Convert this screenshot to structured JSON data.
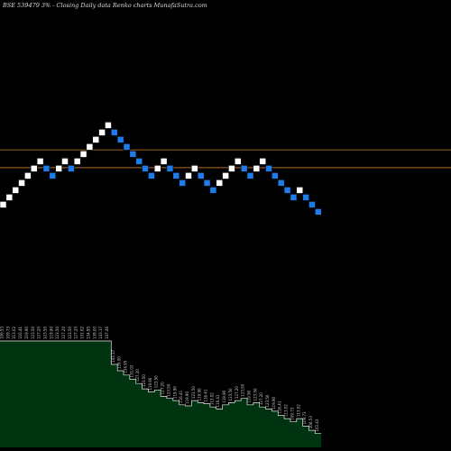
{
  "chart_data": {
    "type": "renko",
    "title": "BSE 539479 3% -  Closing Daily data  Renko  charts MunafaSutra.com",
    "bricks": [
      {
        "high": 106.53,
        "dir": "up"
      },
      {
        "high": 109.73,
        "dir": "up"
      },
      {
        "high": 113.02,
        "dir": "up"
      },
      {
        "high": 116.41,
        "dir": "up"
      },
      {
        "high": 119.9,
        "dir": "up"
      },
      {
        "high": 123.5,
        "dir": "up"
      },
      {
        "high": 127.2,
        "dir": "up"
      },
      {
        "high": 123.5,
        "dir": "down"
      },
      {
        "high": 119.9,
        "dir": "down"
      },
      {
        "high": 123.5,
        "dir": "up"
      },
      {
        "high": 127.2,
        "dir": "up"
      },
      {
        "high": 123.5,
        "dir": "down"
      },
      {
        "high": 127.2,
        "dir": "up"
      },
      {
        "high": 131.02,
        "dir": "up"
      },
      {
        "high": 134.95,
        "dir": "up"
      },
      {
        "high": 139.0,
        "dir": "up"
      },
      {
        "high": 143.17,
        "dir": "up"
      },
      {
        "high": 147.46,
        "dir": "up"
      },
      {
        "high": 143.17,
        "dir": "down"
      },
      {
        "high": 139.0,
        "dir": "down"
      },
      {
        "high": 134.95,
        "dir": "down"
      },
      {
        "high": 131.02,
        "dir": "down"
      },
      {
        "high": 127.2,
        "dir": "down"
      },
      {
        "high": 123.5,
        "dir": "down"
      },
      {
        "high": 119.9,
        "dir": "down"
      },
      {
        "high": 123.5,
        "dir": "up"
      },
      {
        "high": 127.2,
        "dir": "up"
      },
      {
        "high": 123.5,
        "dir": "down"
      },
      {
        "high": 119.9,
        "dir": "down"
      },
      {
        "high": 116.41,
        "dir": "down"
      },
      {
        "high": 119.9,
        "dir": "up"
      },
      {
        "high": 123.5,
        "dir": "up"
      },
      {
        "high": 119.9,
        "dir": "down"
      },
      {
        "high": 116.41,
        "dir": "down"
      },
      {
        "high": 113.02,
        "dir": "down"
      },
      {
        "high": 116.41,
        "dir": "up"
      },
      {
        "high": 119.9,
        "dir": "up"
      },
      {
        "high": 123.5,
        "dir": "up"
      },
      {
        "high": 127.2,
        "dir": "up"
      },
      {
        "high": 123.5,
        "dir": "down"
      },
      {
        "high": 119.9,
        "dir": "down"
      },
      {
        "high": 123.5,
        "dir": "up"
      },
      {
        "high": 127.2,
        "dir": "up"
      },
      {
        "high": 123.5,
        "dir": "down"
      },
      {
        "high": 119.9,
        "dir": "down"
      },
      {
        "high": 116.41,
        "dir": "down"
      },
      {
        "high": 113.02,
        "dir": "down"
      },
      {
        "high": 109.73,
        "dir": "down"
      },
      {
        "high": 113.02,
        "dir": "up"
      },
      {
        "high": 109.73,
        "dir": "down"
      },
      {
        "high": 106.53,
        "dir": "down"
      },
      {
        "high": 103.43,
        "dir": "down"
      }
    ],
    "volume_labels": [
      "106.53",
      "109.73",
      "113.02",
      "116.41",
      "119.90",
      "123.50",
      "127.20",
      "123.50",
      "119.90",
      "123.50",
      "127.20",
      "123.50",
      "127.20",
      "131.02",
      "134.95",
      "139.00",
      "143.17",
      "147.46",
      "143.17",
      "139.00",
      "134.95",
      "131.02",
      "127.20",
      "123.50",
      "119.90",
      "123.50",
      "127.20",
      "123.50",
      "119.90",
      "116.41",
      "119.90",
      "123.50",
      "119.90",
      "116.41",
      "113.02",
      "116.41",
      "119.90",
      "123.50",
      "127.20",
      "123.50",
      "119.90",
      "123.50",
      "127.20",
      "123.50",
      "119.90",
      "116.41",
      "113.02",
      "109.73",
      "113.02",
      "109.73",
      "106.53",
      "103.43"
    ],
    "volume_values": [
      100,
      100,
      100,
      100,
      100,
      100,
      100,
      100,
      100,
      100,
      100,
      100,
      100,
      100,
      100,
      100,
      100,
      100,
      78,
      72,
      68,
      64,
      60,
      55,
      52,
      54,
      48,
      46,
      44,
      40,
      39,
      44,
      42,
      41,
      38,
      36,
      40,
      42,
      44,
      46,
      40,
      42,
      38,
      36,
      34,
      30,
      27,
      24,
      27,
      20,
      16,
      13
    ],
    "reference_lines": [
      {
        "value": 122.37
      },
      {
        "value": 131.59
      }
    ],
    "colors": {
      "up": "#ffffff",
      "down": "#1e7be8",
      "reference": "#b36b25",
      "volume_fill": "#00330f",
      "volume_line": "#e8e8e8"
    }
  }
}
